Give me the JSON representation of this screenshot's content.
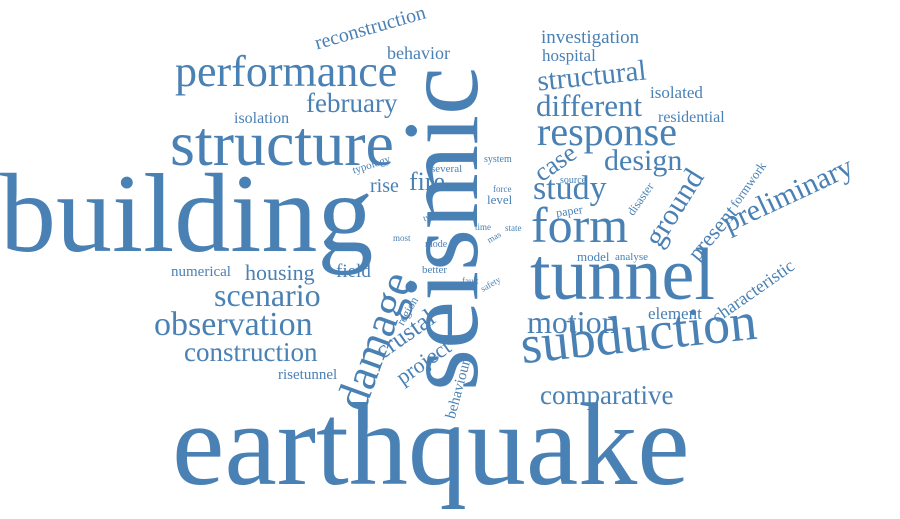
{
  "colors": {
    "word": "#4a81b5",
    "background": "#ffffff"
  },
  "words": {
    "earthquake": "earthquake",
    "building": "building",
    "seismic": "seismic",
    "structure": "structure",
    "tunnel": "tunnel",
    "performance": "performance",
    "subduction": "subduction",
    "form": "form",
    "response": "response",
    "damage": "damage",
    "observation": "observation",
    "scenario": "scenario",
    "construction": "construction",
    "february": "february",
    "different": "different",
    "structural": "structural",
    "study": "study",
    "design": "design",
    "motion": "motion",
    "comparative": "comparative",
    "preliminary": "preliminary",
    "ground": "ground",
    "reconstruction": "reconstruction",
    "investigation": "investigation",
    "hospital": "hospital",
    "behavior": "behavior",
    "isolated": "isolated",
    "isolation": "isolation",
    "residential": "residential",
    "housing": "housing",
    "field": "field",
    "fire": "fire",
    "rise": "rise",
    "case": "case",
    "crustal": "crustal",
    "project": "project",
    "element": "element",
    "characteristic": "characteristic",
    "present": "present",
    "numerical": "numerical",
    "risetunnel": "risetunnel",
    "behaviour": "behaviour",
    "typology": "typology",
    "several": "several",
    "system": "system",
    "source": "source",
    "force": "force",
    "level": "level",
    "paper": "paper",
    "disaster": "disaster",
    "formwork": "formwork",
    "type": "type",
    "most": "most",
    "mode": "mode",
    "post": "post",
    "time": "time",
    "mas": "mas",
    "state": "state",
    "model": "model",
    "analyse": "analyse",
    "better": "better",
    "fault": "fault",
    "safety": "safety",
    "region": "region"
  }
}
